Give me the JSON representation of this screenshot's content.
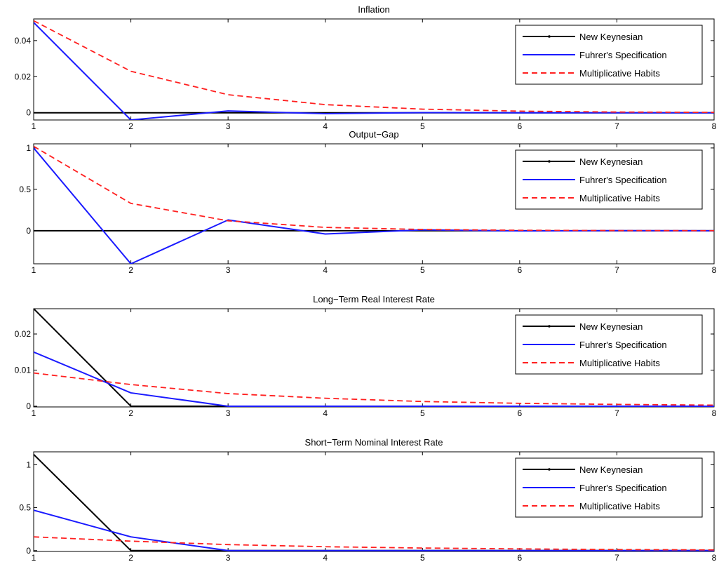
{
  "chart_data": [
    {
      "type": "line",
      "title": "Inflation",
      "xlabel": "",
      "ylabel": "",
      "x": [
        1,
        2,
        3,
        4,
        5,
        6,
        7,
        8
      ],
      "xlim": [
        1,
        8
      ],
      "ylim": [
        -0.004,
        0.052
      ],
      "yticks": [
        0,
        0.02,
        0.04
      ],
      "ytick_labels": [
        "0",
        "0.02",
        "0.04"
      ],
      "legend_position": "top-right",
      "series": [
        {
          "name": "New Keynesian",
          "color": "#000000",
          "dash": "solid",
          "values": [
            0,
            0,
            0,
            0,
            0,
            0,
            0,
            0
          ]
        },
        {
          "name": "Fuhrer's Specification",
          "color": "#1a1aff",
          "dash": "solid",
          "values": [
            0.05,
            -0.004,
            0.001,
            -0.0005,
            0.0001,
            0,
            0,
            0
          ]
        },
        {
          "name": "Multiplicative Habits",
          "color": "#ff2020",
          "dash": "dashed",
          "values": [
            0.051,
            0.023,
            0.01,
            0.0045,
            0.002,
            0.0009,
            0.0004,
            0.0002
          ]
        }
      ]
    },
    {
      "type": "line",
      "title": "Output−Gap",
      "xlabel": "",
      "ylabel": "",
      "x": [
        1,
        2,
        3,
        4,
        5,
        6,
        7,
        8
      ],
      "xlim": [
        1,
        8
      ],
      "ylim": [
        -0.4,
        1.05
      ],
      "yticks": [
        0,
        0.5,
        1
      ],
      "ytick_labels": [
        "0",
        "0.5",
        "1"
      ],
      "legend_position": "top-right",
      "series": [
        {
          "name": "New Keynesian",
          "color": "#000000",
          "dash": "solid",
          "values": [
            0,
            0,
            0,
            0,
            0,
            0,
            0,
            0
          ]
        },
        {
          "name": "Fuhrer's Specification",
          "color": "#1a1aff",
          "dash": "solid",
          "values": [
            1.0,
            -0.4,
            0.13,
            -0.04,
            0.01,
            -0.003,
            0.001,
            0
          ]
        },
        {
          "name": "Multiplicative Habits",
          "color": "#ff2020",
          "dash": "dashed",
          "values": [
            1.02,
            0.33,
            0.12,
            0.04,
            0.015,
            0.005,
            0.002,
            0.0005
          ]
        }
      ]
    },
    {
      "type": "line",
      "title": "Long−Term Real Interest Rate",
      "xlabel": "",
      "ylabel": "",
      "x": [
        1,
        2,
        3,
        4,
        5,
        6,
        7,
        8
      ],
      "xlim": [
        1,
        8
      ],
      "ylim": [
        -0.0002,
        0.027
      ],
      "yticks": [
        0,
        0.01,
        0.02
      ],
      "ytick_labels": [
        "0",
        "0.01",
        "0.02"
      ],
      "legend_position": "top-right",
      "series": [
        {
          "name": "New Keynesian",
          "color": "#000000",
          "dash": "solid",
          "values": [
            0.027,
            0,
            0,
            0,
            0,
            0,
            0,
            0
          ]
        },
        {
          "name": "Fuhrer's Specification",
          "color": "#1a1aff",
          "dash": "solid",
          "values": [
            0.015,
            0.0037,
            0,
            0,
            0,
            0,
            0,
            0
          ]
        },
        {
          "name": "Multiplicative Habits",
          "color": "#ff2020",
          "dash": "dashed",
          "values": [
            0.0092,
            0.006,
            0.0035,
            0.0022,
            0.0013,
            0.0008,
            0.0005,
            0.0003
          ]
        }
      ]
    },
    {
      "type": "line",
      "title": "Short−Term Nominal Interest Rate",
      "xlabel": "",
      "ylabel": "",
      "x": [
        1,
        2,
        3,
        4,
        5,
        6,
        7,
        8
      ],
      "xlim": [
        1,
        8
      ],
      "ylim": [
        -0.01,
        1.15
      ],
      "yticks": [
        0,
        0.5,
        1
      ],
      "ytick_labels": [
        "0",
        "0.5",
        "1"
      ],
      "legend_position": "top-right",
      "series": [
        {
          "name": "New Keynesian",
          "color": "#000000",
          "dash": "solid",
          "values": [
            1.12,
            0,
            0,
            0,
            0,
            0,
            0,
            0
          ]
        },
        {
          "name": "Fuhrer's Specification",
          "color": "#1a1aff",
          "dash": "solid",
          "values": [
            0.47,
            0.16,
            0,
            0,
            0,
            0,
            0,
            0
          ]
        },
        {
          "name": "Multiplicative Habits",
          "color": "#ff2020",
          "dash": "dashed",
          "values": [
            0.16,
            0.11,
            0.07,
            0.045,
            0.03,
            0.02,
            0.012,
            0.008
          ]
        }
      ]
    }
  ]
}
